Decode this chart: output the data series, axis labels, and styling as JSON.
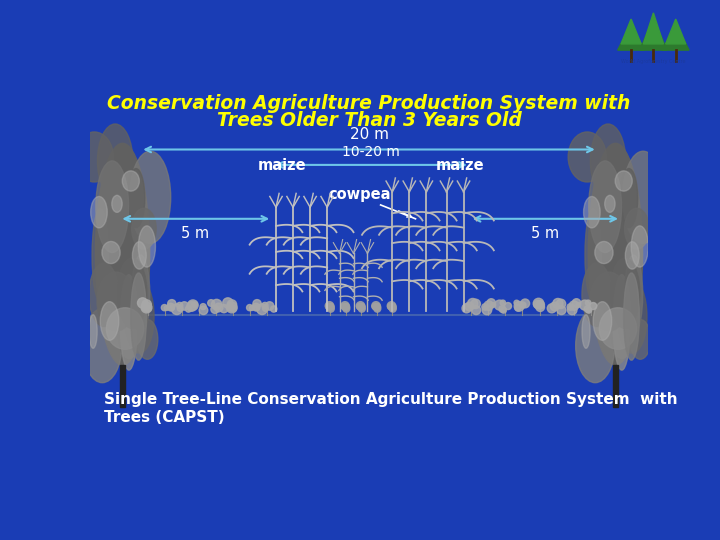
{
  "bg_color": "#1a3db5",
  "title_line1": "Conservation Agriculture Production System with",
  "title_line2": "Trees Older Than 3 Years Old",
  "title_color": "#ffff00",
  "title_fontsize": 13.5,
  "label_color": "#ffffff",
  "arrow_color": "#6ec6e8",
  "label_20m": "20 m",
  "label_10_20m": "10-20 m",
  "label_5m_left": "5 m",
  "label_5m_right": "5 m",
  "label_maize_left": "maize",
  "label_maize_right": "maize",
  "label_cowpea": "cowpea",
  "caption_line1": "Single Tree-Line Conservation Agriculture Production System  with",
  "caption_line2": "Trees (CAPST)",
  "caption_color": "#ffffff",
  "caption_fontsize": 11,
  "tree_color": "#707070",
  "trunk_color": "#222222",
  "plant_color": "#c8c8c8",
  "shrub_color": "#b0b0b0"
}
